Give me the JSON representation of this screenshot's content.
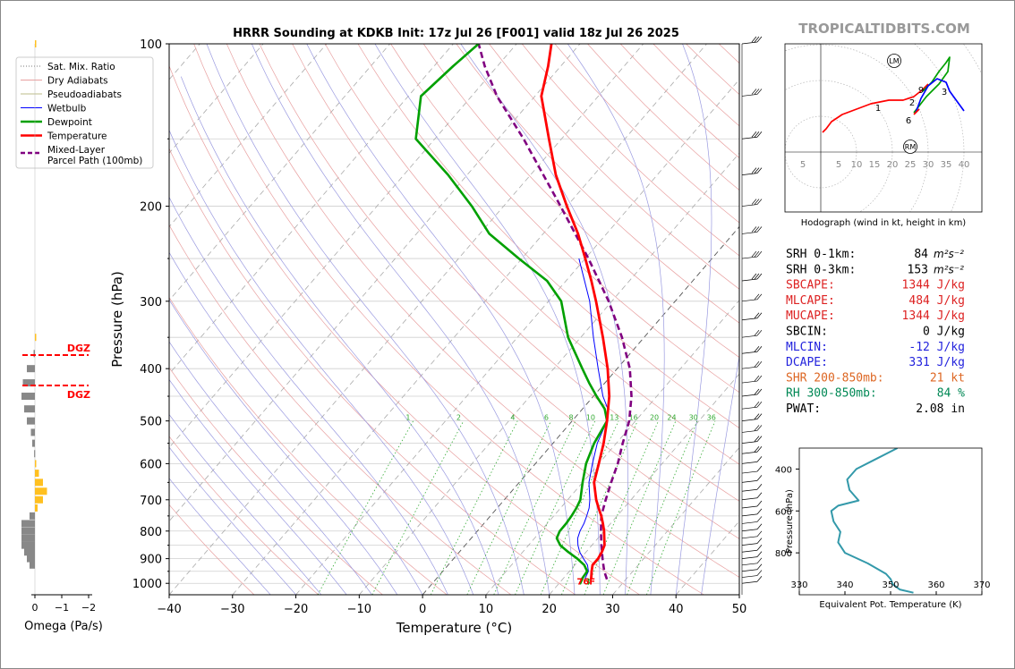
{
  "site_title": "TROPICALTIDBITS.COM",
  "chart_data": [
    {
      "type": "line",
      "title": "HRRR Sounding at KDKB Init: 17z Jul 26 [F001] valid 18z Jul 26 2025",
      "xlabel": "Temperature (°C)",
      "ylabel": "Pressure (hPa)",
      "xlim": [
        -40,
        50
      ],
      "ylim": [
        1050,
        100
      ],
      "log_y": true,
      "skew": true,
      "x_ticks": [
        "−40",
        "−30",
        "−20",
        "−10",
        "0",
        "10",
        "20",
        "30",
        "40",
        "50"
      ],
      "y_ticks": [
        "100",
        "200",
        "300",
        "400",
        "500",
        "600",
        "700",
        "800",
        "900",
        "1000"
      ],
      "legend": {
        "placement": "top-left",
        "entries": [
          "Sat. Mix. Ratio",
          "Dry Adiabats",
          "Pseudoadiabats",
          "Wetbulb",
          "Dewpoint",
          "Temperature",
          "Mixed-Layer\nParcel Path (100mb)"
        ]
      },
      "mixing_ratio_labels": [
        "1",
        "2",
        "4",
        "6",
        "8",
        "10",
        "13",
        "16",
        "20",
        "24",
        "30",
        "36"
      ],
      "surface_labels": {
        "dewpoint": "73",
        "temperature": "76F"
      },
      "series": [
        {
          "name": "Temperature",
          "color": "#ff0000",
          "points": [
            [
              983,
              24.5
            ],
            [
              950,
              23.5
            ],
            [
              925,
              22.8
            ],
            [
              900,
              22.8
            ],
            [
              875,
              22.5
            ],
            [
              850,
              22
            ],
            [
              825,
              21
            ],
            [
              800,
              20
            ],
            [
              775,
              18.8
            ],
            [
              750,
              17.5
            ],
            [
              725,
              16
            ],
            [
              700,
              14.5
            ],
            [
              650,
              11.8
            ],
            [
              600,
              10
            ],
            [
              550,
              8
            ],
            [
              500,
              5.5
            ],
            [
              450,
              2.5
            ],
            [
              400,
              -1.5
            ],
            [
              350,
              -6.5
            ],
            [
              300,
              -12.5
            ],
            [
              275,
              -16
            ],
            [
              250,
              -20
            ],
            [
              225,
              -24.5
            ],
            [
              200,
              -30
            ],
            [
              175,
              -36
            ],
            [
              150,
              -42
            ],
            [
              125,
              -49
            ],
            [
              110,
              -52
            ],
            [
              100,
              -54.5
            ]
          ]
        },
        {
          "name": "Dewpoint",
          "color": "#00a000",
          "points": [
            [
              983,
              23
            ],
            [
              950,
              22.8
            ],
            [
              925,
              21.5
            ],
            [
              900,
              19.5
            ],
            [
              875,
              17.2
            ],
            [
              850,
              15
            ],
            [
              825,
              13.5
            ],
            [
              800,
              13
            ],
            [
              775,
              13
            ],
            [
              750,
              12.8
            ],
            [
              725,
              12.5
            ],
            [
              700,
              12
            ],
            [
              650,
              10
            ],
            [
              600,
              8
            ],
            [
              550,
              6.5
            ],
            [
              500,
              5.5
            ],
            [
              475,
              3.5
            ],
            [
              450,
              0.5
            ],
            [
              425,
              -2.5
            ],
            [
              400,
              -5.5
            ],
            [
              350,
              -12
            ],
            [
              300,
              -18
            ],
            [
              275,
              -23
            ],
            [
              250,
              -30.5
            ],
            [
              225,
              -38.5
            ],
            [
              200,
              -45
            ],
            [
              175,
              -53
            ],
            [
              150,
              -63
            ],
            [
              125,
              -68
            ],
            [
              110,
              -67
            ],
            [
              100,
              -66
            ]
          ]
        },
        {
          "name": "Wetbulb",
          "color": "#0000ff",
          "points": [
            [
              983,
              23.5
            ],
            [
              950,
              23
            ],
            [
              925,
              22
            ],
            [
              900,
              20.5
            ],
            [
              875,
              19
            ],
            [
              850,
              17.8
            ],
            [
              825,
              16.8
            ],
            [
              800,
              16.2
            ],
            [
              775,
              15.8
            ],
            [
              750,
              15.2
            ],
            [
              725,
              14.5
            ],
            [
              700,
              13.5
            ],
            [
              650,
              11
            ],
            [
              600,
              9
            ],
            [
              550,
              7
            ],
            [
              500,
              5.5
            ],
            [
              475,
              4
            ],
            [
              450,
              1.5
            ],
            [
              400,
              -3
            ],
            [
              350,
              -8
            ],
            [
              300,
              -13.5
            ],
            [
              250,
              -21
            ]
          ]
        },
        {
          "name": "Mixed-Layer\nParcel Path (100mb)",
          "color": "#800080",
          "points": [
            [
              983,
              27
            ],
            [
              950,
              25.5
            ],
            [
              925,
              24.5
            ],
            [
              900,
              23.5
            ],
            [
              850,
              21.5
            ],
            [
              800,
              19.5
            ],
            [
              750,
              17.5
            ],
            [
              700,
              16
            ],
            [
              650,
              14.5
            ],
            [
              600,
              13
            ],
            [
              550,
              11
            ],
            [
              500,
              9
            ],
            [
              450,
              6
            ],
            [
              400,
              2
            ],
            [
              350,
              -3.5
            ],
            [
              300,
              -10.5
            ],
            [
              250,
              -19.5
            ],
            [
              200,
              -31
            ],
            [
              150,
              -46
            ],
            [
              125,
              -56
            ],
            [
              110,
              -62
            ],
            [
              100,
              -66
            ]
          ]
        }
      ]
    },
    {
      "type": "line",
      "title": "Hodograph (wind in kt, height in km)",
      "x_ticks": [
        "5",
        "5",
        "10",
        "15",
        "20",
        "25",
        "30",
        "35",
        "40"
      ],
      "point_labels": [
        "1",
        "2",
        "3",
        "6",
        "9"
      ],
      "markers": [
        "LM",
        "RM"
      ],
      "series": [
        {
          "name": "0-3 km",
          "color": "#ff0000",
          "points": [
            [
              0.5,
              5.5
            ],
            [
              1.5,
              6.5
            ],
            [
              3,
              8.5
            ],
            [
              6,
              10.5
            ],
            [
              10,
              12
            ],
            [
              14,
              13.5
            ],
            [
              19,
              14.5
            ],
            [
              23,
              14.5
            ],
            [
              26,
              15.5
            ],
            [
              28.5,
              17.5
            ],
            [
              30,
              19
            ]
          ]
        },
        {
          "name": "3-6 km",
          "color": "#00a000",
          "points": [
            [
              28.5,
              17
            ],
            [
              31,
              19.5
            ],
            [
              33,
              22.5
            ],
            [
              35,
              25
            ],
            [
              36,
              26.5
            ],
            [
              35.5,
              22.5
            ],
            [
              33,
              19
            ],
            [
              29.5,
              15.5
            ],
            [
              26,
              11
            ]
          ]
        },
        {
          "name": "6-9 km",
          "color": "#0000ff",
          "points": [
            [
              26.5,
              11
            ],
            [
              28,
              15
            ],
            [
              30,
              18.5
            ],
            [
              32.5,
              20.5
            ],
            [
              35,
              19.5
            ],
            [
              36,
              17
            ],
            [
              40,
              11.5
            ]
          ]
        },
        {
          "name": "9+ km",
          "color": "#ff0000",
          "points": [
            [
              26,
              10.5
            ],
            [
              27.5,
              12
            ]
          ]
        }
      ],
      "LM": [
        20.5,
        25.5
      ],
      "RM": [
        25,
        1.5
      ]
    },
    {
      "type": "line",
      "xlabel": "Equivalent Pot. Temperature (K)",
      "ylabel": "Pressure (hPa)",
      "xlim": [
        330,
        370
      ],
      "ylim": [
        1000,
        300
      ],
      "x_ticks": [
        "330",
        "340",
        "350",
        "360",
        "370"
      ],
      "y_ticks": [
        "400",
        "600",
        "800"
      ],
      "series": [
        {
          "name": "theta-e",
          "color": "#3399aa",
          "points": [
            [
              300,
              351.5
            ],
            [
              350,
              347
            ],
            [
              400,
              342.5
            ],
            [
              450,
              340.5
            ],
            [
              500,
              341
            ],
            [
              550,
              343
            ],
            [
              575,
              338.5
            ],
            [
              600,
              337
            ],
            [
              650,
              337.5
            ],
            [
              700,
              339
            ],
            [
              750,
              338.5
            ],
            [
              800,
              340
            ],
            [
              850,
              345
            ],
            [
              900,
              349
            ],
            [
              925,
              350
            ],
            [
              950,
              350.5
            ],
            [
              975,
              352
            ],
            [
              990,
              355
            ]
          ]
        }
      ]
    },
    {
      "type": "bar",
      "xlabel": "Omega (Pa/s)",
      "x_ticks": [
        "0",
        "−1",
        "−2"
      ],
      "dgz_label": "DGZ",
      "series": [
        {
          "name": "omega",
          "values_by_level": [
            [
              100,
              -0.05
            ],
            [
              350,
              -0.05
            ],
            [
              375,
              0.05
            ],
            [
              400,
              0.3
            ],
            [
              425,
              0.45
            ],
            [
              450,
              0.5
            ],
            [
              475,
              0.4
            ],
            [
              500,
              0.3
            ],
            [
              525,
              0.15
            ],
            [
              550,
              0.1
            ],
            [
              575,
              0.03
            ],
            [
              600,
              -0.05
            ],
            [
              625,
              -0.15
            ],
            [
              650,
              -0.3
            ],
            [
              675,
              -0.45
            ],
            [
              700,
              -0.3
            ],
            [
              725,
              -0.1
            ],
            [
              750,
              0.2
            ],
            [
              775,
              0.5
            ],
            [
              800,
              0.5
            ],
            [
              825,
              0.5
            ],
            [
              850,
              0.5
            ],
            [
              875,
              0.4
            ],
            [
              900,
              0.3
            ],
            [
              925,
              0.2
            ]
          ]
        }
      ]
    }
  ],
  "indices": [
    {
      "label": "SRH 0-1km:",
      "value": "84",
      "unit": "m²s⁻²",
      "color": "#000000"
    },
    {
      "label": "SRH 0-3km:",
      "value": "153",
      "unit": "m²s⁻²",
      "color": "#000000"
    },
    {
      "label": "SBCAPE:",
      "value": "1344 J/kg",
      "unit": "",
      "color": "#dd2222"
    },
    {
      "label": "MLCAPE:",
      "value": "484 J/kg",
      "unit": "",
      "color": "#dd2222"
    },
    {
      "label": "MUCAPE:",
      "value": "1344 J/kg",
      "unit": "",
      "color": "#dd2222"
    },
    {
      "label": "SBCIN:",
      "value": "0 J/kg",
      "unit": "",
      "color": "#000000"
    },
    {
      "label": "MLCIN:",
      "value": "-12 J/kg",
      "unit": "",
      "color": "#2222dd"
    },
    {
      "label": "DCAPE:",
      "value": "331 J/kg",
      "unit": "",
      "color": "#2222dd"
    },
    {
      "label": "SHR 200-850mb:",
      "value": "21 kt",
      "unit": "",
      "color": "#dd6622"
    },
    {
      "label": "RH 300-850mb:",
      "value": "84 %",
      "unit": "",
      "color": "#008855"
    },
    {
      "label": "PWAT:",
      "value": "2.08 in",
      "unit": "",
      "color": "#000000"
    }
  ]
}
